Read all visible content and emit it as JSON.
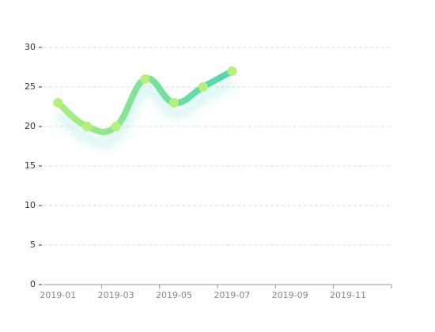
{
  "chart_data": {
    "type": "line",
    "categories": [
      "2019-01",
      null,
      "2019-03",
      null,
      "2019-05",
      null,
      "2019-07",
      null,
      "2019-09",
      null,
      "2019-11",
      null
    ],
    "series": [
      {
        "values": [
          23,
          20,
          20,
          26,
          23,
          25,
          27,
          null,
          null,
          null,
          null,
          null
        ],
        "color": [
          "#a9ee7e",
          "#4fd6b0"
        ],
        "point_color": "#b5f07a"
      }
    ],
    "ylim": [
      0,
      30
    ],
    "yticks": [
      0,
      5,
      10,
      15,
      20,
      25,
      30
    ],
    "grid": true,
    "smooth": true
  }
}
